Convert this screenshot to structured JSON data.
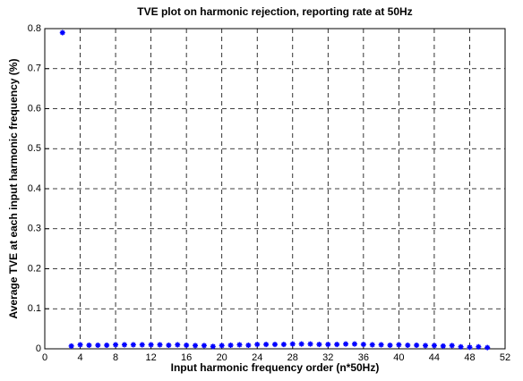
{
  "chart_data": {
    "type": "scatter",
    "title": "TVE plot on harmonic rejection, reporting rate at 50Hz",
    "x_label": "Input harmonic frequency order (n*50Hz)",
    "y_label": "Average TVE at each input harmonic frequency (%)",
    "x": [
      2,
      3,
      4,
      5,
      6,
      7,
      8,
      9,
      10,
      11,
      12,
      13,
      14,
      15,
      16,
      17,
      18,
      19,
      20,
      21,
      22,
      23,
      24,
      25,
      26,
      27,
      28,
      29,
      30,
      31,
      32,
      33,
      34,
      35,
      36,
      37,
      38,
      39,
      40,
      41,
      42,
      43,
      44,
      45,
      46,
      47,
      48,
      49,
      50
    ],
    "values": [
      0.79,
      0.007,
      0.01,
      0.009,
      0.009,
      0.009,
      0.01,
      0.01,
      0.01,
      0.01,
      0.01,
      0.01,
      0.009,
      0.01,
      0.009,
      0.008,
      0.008,
      0.006,
      0.008,
      0.009,
      0.01,
      0.009,
      0.011,
      0.011,
      0.011,
      0.011,
      0.012,
      0.012,
      0.012,
      0.011,
      0.011,
      0.011,
      0.012,
      0.012,
      0.011,
      0.01,
      0.01,
      0.009,
      0.01,
      0.009,
      0.009,
      0.008,
      0.008,
      0.007,
      0.008,
      0.005,
      0.004,
      0.005,
      0.003
    ],
    "color": "#0000ff",
    "xlim": [
      0,
      52
    ],
    "xticks": [
      0,
      4,
      8,
      12,
      16,
      20,
      24,
      28,
      32,
      36,
      40,
      44,
      48,
      52
    ],
    "ylim": [
      0,
      0.8
    ],
    "yticks": [
      0,
      0.1,
      0.2,
      0.3,
      0.4,
      0.5,
      0.6,
      0.7,
      0.8
    ],
    "grid": true
  }
}
